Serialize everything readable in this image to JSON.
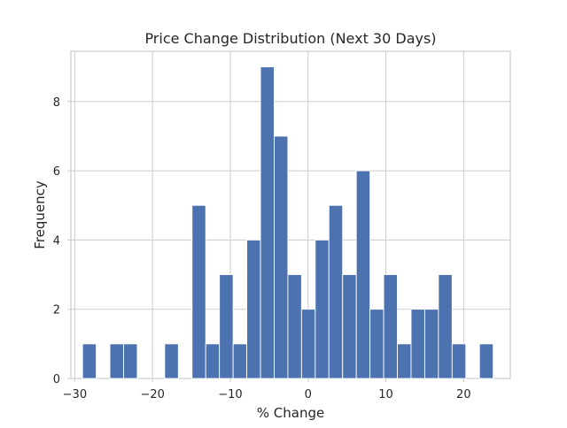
{
  "chart_data": {
    "type": "bar",
    "subtype": "histogram",
    "title": "Price Change Distribution (Next 30 Days)",
    "xlabel": "% Change",
    "ylabel": "Frequency",
    "xlim": [
      -30.5,
      26
    ],
    "ylim": [
      0,
      9.45
    ],
    "xticks": [
      -30,
      -20,
      -10,
      0,
      10,
      20
    ],
    "xtick_labels": [
      "−30",
      "−20",
      "−10",
      "0",
      "10",
      "20"
    ],
    "yticks": [
      0,
      2,
      4,
      6,
      8
    ],
    "ytick_labels": [
      "0",
      "2",
      "4",
      "6",
      "8"
    ],
    "grid": true,
    "bar_color": "#4c72b0",
    "bin_edges": [
      -29.0,
      -27.24,
      -25.48,
      -23.72,
      -21.96,
      -20.2,
      -18.44,
      -16.68,
      -14.92,
      -13.16,
      -11.4,
      -9.64,
      -7.88,
      -6.12,
      -4.36,
      -2.6,
      -0.84,
      0.92,
      2.68,
      4.44,
      6.2,
      7.96,
      9.72,
      11.48,
      13.24,
      15.0,
      16.76,
      18.52,
      20.28,
      22.04,
      23.8
    ],
    "values": [
      1,
      0,
      1,
      1,
      0,
      0,
      1,
      0,
      5,
      1,
      3,
      1,
      4,
      9,
      7,
      3,
      2,
      4,
      5,
      3,
      6,
      2,
      3,
      1,
      2,
      2,
      3,
      1,
      0,
      1
    ]
  }
}
